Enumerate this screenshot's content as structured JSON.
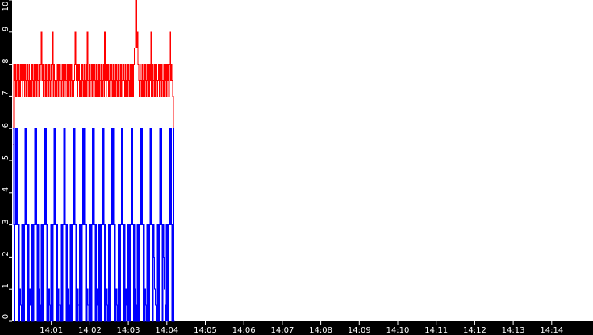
{
  "chart_data": {
    "type": "line",
    "title": "",
    "xlabel": "",
    "ylabel": "",
    "x_start": "14:00:00",
    "x_step_seconds": 1,
    "xlim": [
      "14:00:00",
      "14:15:03"
    ],
    "ylim": [
      0,
      10
    ],
    "grid": false,
    "background": "#ffffff",
    "axis_color": "#000000",
    "tick_label_color": "#ffffff",
    "x_ticks": [
      "14:01",
      "14:02",
      "14:03",
      "14:04",
      "14:05",
      "14:06",
      "14:07",
      "14:08",
      "14:09",
      "14:10",
      "14:11",
      "14:12",
      "14:13",
      "14:14"
    ],
    "y_ticks": [
      "0",
      "1",
      "2",
      "3",
      "4",
      "5",
      "6",
      "7",
      "8",
      "9",
      "10"
    ],
    "series": [
      {
        "color": "#ff0000",
        "step": true,
        "values": [
          5.5,
          8,
          7.5,
          7,
          8,
          7,
          7.5,
          8,
          7,
          8,
          7.5,
          7,
          8,
          7.5,
          8,
          7,
          7.5,
          8,
          7,
          8,
          7.5,
          7,
          8,
          7.5,
          7,
          8,
          7,
          7.5,
          8,
          7,
          8,
          7.5,
          7,
          8,
          7,
          7.5,
          8,
          7,
          8,
          7.5,
          7,
          8,
          7.5,
          8,
          9,
          7.5,
          8,
          7,
          8,
          7.5,
          7,
          8,
          7,
          7.5,
          8,
          7,
          8,
          7.5,
          7,
          8,
          7.5,
          8,
          9,
          7,
          8,
          7.5,
          7,
          8,
          7,
          7.5,
          8,
          7,
          8,
          7.5,
          7,
          7,
          7.5,
          8,
          7,
          8,
          7.5,
          7,
          8,
          7.5,
          7,
          8,
          7,
          7.5,
          8,
          7,
          8,
          7.5,
          7,
          8,
          7,
          7.5,
          8,
          9,
          8,
          7.5,
          7,
          8,
          7.5,
          8,
          7,
          7.5,
          8,
          7,
          8,
          7.5,
          7,
          8,
          7,
          7.5,
          8,
          7,
          9,
          7.5,
          7,
          8,
          7,
          7.5,
          8,
          7,
          8,
          7.5,
          7,
          8,
          7.5,
          7,
          8,
          7,
          7.5,
          8,
          7,
          8,
          7.5,
          7,
          8,
          7,
          7.5,
          8,
          7,
          9,
          7.5,
          7,
          8,
          7.5,
          8,
          7,
          7.5,
          8,
          7,
          8,
          7.5,
          7,
          8,
          7,
          7.5,
          8,
          7,
          8,
          7.5,
          7,
          8,
          7,
          7.5,
          8,
          7,
          8,
          7.5,
          7,
          8,
          7.5,
          7,
          8,
          7,
          7.5,
          8,
          7,
          8,
          7.5,
          7,
          8,
          7,
          7.5,
          8,
          7,
          8,
          8.5,
          8.5,
          10,
          10,
          8.5,
          9,
          8,
          7.5,
          7,
          8,
          7.5,
          7,
          8,
          7,
          7.5,
          8,
          7,
          8,
          7.5,
          7,
          8,
          7.5,
          8,
          7,
          8,
          7.5,
          9,
          7,
          8,
          7,
          7.5,
          8,
          7,
          8,
          7.5,
          7,
          7,
          7.5,
          8,
          7,
          8,
          7.5,
          7,
          8,
          7.5,
          7,
          8,
          7,
          7.5,
          8,
          7,
          8,
          7.5,
          8,
          7,
          8,
          9,
          7.5,
          8,
          7.5,
          7,
          3.5,
          0
        ]
      },
      {
        "color": "#0000ff",
        "step": true,
        "values": [
          6,
          3,
          0,
          3,
          6,
          3,
          6,
          3,
          0,
          3,
          0,
          1,
          0.5,
          0,
          3,
          0,
          3,
          0,
          3,
          6,
          3,
          6,
          3,
          0,
          3,
          0,
          1,
          0.5,
          0,
          3,
          0,
          3,
          0,
          3,
          6,
          3,
          6,
          3,
          0,
          3,
          0,
          1,
          0.5,
          0,
          3,
          0,
          3,
          0,
          3,
          6,
          3,
          6,
          3,
          0,
          3,
          0,
          1,
          0.5,
          0,
          3,
          0,
          3,
          0,
          3,
          6,
          3,
          6,
          3,
          0,
          3,
          0,
          1,
          0.5,
          0,
          3,
          0,
          3,
          0,
          3,
          6,
          3,
          6,
          3,
          0,
          3,
          0,
          1,
          0.5,
          0,
          3,
          0,
          3,
          0,
          3,
          6,
          3,
          6,
          3,
          0,
          3,
          0,
          1,
          0.5,
          0,
          3,
          0,
          3,
          0,
          3,
          6,
          3,
          6,
          3,
          0,
          3,
          0,
          1,
          0.5,
          0,
          3,
          0,
          3,
          0,
          3,
          6,
          3,
          6,
          3,
          0,
          3,
          0,
          1,
          0.5,
          0,
          3,
          0,
          3,
          0,
          3,
          6,
          3,
          6,
          3,
          0,
          3,
          0,
          1,
          0.5,
          0,
          3,
          0,
          3,
          0,
          3,
          6,
          3,
          6,
          3,
          0,
          3,
          0,
          1,
          0.5,
          0,
          3,
          0,
          3,
          0,
          3,
          6,
          3,
          6,
          3,
          0,
          3,
          0,
          1,
          0.5,
          0,
          3,
          0,
          3,
          0,
          3,
          6,
          3,
          6,
          3,
          0,
          3,
          0,
          1,
          0.5,
          0,
          3,
          0,
          3,
          0,
          3,
          6,
          3,
          6,
          3,
          0,
          3,
          0,
          1,
          0.5,
          0,
          3,
          0,
          3,
          0,
          3,
          6,
          3,
          6,
          3,
          0,
          3,
          2,
          1,
          0.5,
          0,
          3,
          0,
          3,
          0,
          3,
          6,
          3,
          6,
          3,
          0,
          3,
          2,
          1,
          0.5,
          0,
          3,
          0,
          3,
          0,
          3,
          6,
          3,
          6,
          3,
          0,
          3,
          6,
          0
        ]
      }
    ]
  }
}
